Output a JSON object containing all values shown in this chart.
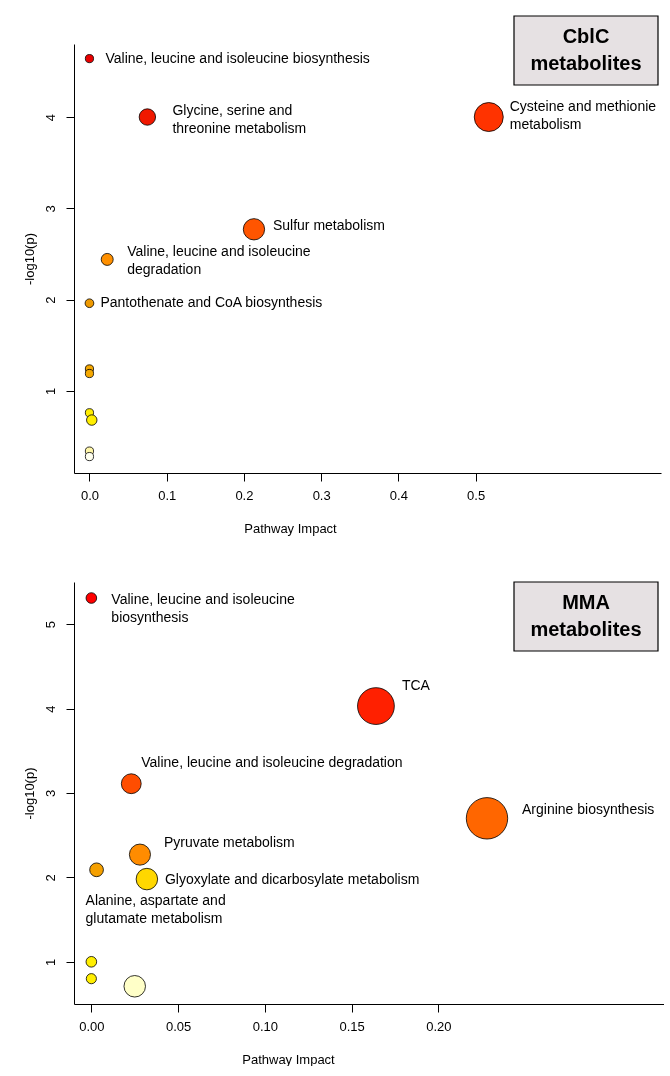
{
  "chart_data": [
    {
      "type": "bubble",
      "title": "CblC\nmetabolites",
      "xlabel": "Pathway Impact",
      "ylabel": "-log10(p)",
      "marker": "circle",
      "x": [
        0,
        0.075,
        0.517,
        0.213,
        0.023,
        0,
        0,
        0,
        0,
        0.003,
        0,
        0
      ],
      "values": [
        4.64,
        4.0,
        4.0,
        2.77,
        2.44,
        1.96,
        1.24,
        1.19,
        0.76,
        0.68,
        0.34,
        0.28
      ],
      "sizes": [
        0.08,
        0.32,
        1,
        0.54,
        0.17,
        0.09,
        0.08,
        0.08,
        0.08,
        0.13,
        0.08,
        0.08
      ],
      "colors": [
        "#e80000",
        "#f01800",
        "#ff3300",
        "#ff5500",
        "#ff9000",
        "#ee9900",
        "#f5a800",
        "#f5a800",
        "#ffee00",
        "#ffee00",
        "#fff6a8",
        "#fffff0"
      ],
      "xlim": [
        -0.02,
        0.74
      ],
      "xticks": [
        {
          "value": 0,
          "label": "0.0"
        },
        0.1,
        0.2,
        0.3,
        0.4,
        0.5
      ],
      "ylim": [
        0.1,
        4.8
      ],
      "yticks": [
        1,
        2,
        3,
        4
      ],
      "annotations": [
        {
          "text": "Valine, leucine and isoleucine biosynthesis",
          "x": 0,
          "y": 4.64
        },
        {
          "text": "Glycine, serine and\nthreonine metabolism",
          "x": 0.075,
          "y": 4.0
        },
        {
          "text": "Cysteine and methionie\nmetabolism",
          "x": 0.517,
          "y": 4.0
        },
        {
          "text": "Sulfur metabolism",
          "x": 0.213,
          "y": 2.77
        },
        {
          "text": "Valine, leucine and isoleucine\ndegradation",
          "x": 0.023,
          "y": 2.44
        },
        {
          "text": "Pantothenate and CoA biosynthesis",
          "x": 0,
          "y": 1.96
        }
      ]
    },
    {
      "type": "bubble",
      "title": "MMA\nmetabolites",
      "xlabel": "Pathway Impact",
      "ylabel": "-log10(p)",
      "marker": "circle",
      "x": [
        0,
        0.164,
        0.023,
        0.228,
        0.028,
        0.003,
        0.032,
        0,
        0,
        0.025
      ],
      "values": [
        5.31,
        4.03,
        3.11,
        2.7,
        2.27,
        2.09,
        1.98,
        1.0,
        0.8,
        0.71
      ],
      "sizes": [
        0.066,
        0.79,
        0.23,
        1,
        0.26,
        0.11,
        0.27,
        0.066,
        0.06,
        0.27
      ],
      "colors": [
        "#ff0000",
        "#ff2000",
        "#ff4d00",
        "#ff6600",
        "#ff8c00",
        "#f5a000",
        "#ffd700",
        "#ffee00",
        "#ffee00",
        "#ffffc8"
      ],
      "xlim": [
        -0.01,
        0.33
      ],
      "xticks": [
        {
          "value": 0,
          "label": "0.00"
        },
        0.05,
        {
          "value": 0.1,
          "label": "0.10"
        },
        0.15,
        {
          "value": 0.2,
          "label": "0.20"
        }
      ],
      "ylim": [
        0.5,
        5.5
      ],
      "yticks": [
        1,
        2,
        3,
        4,
        5
      ],
      "annotations": [
        {
          "text": "Valine, leucine and isoleucine\nbiosynthesis",
          "x": 0,
          "y": 5.31
        },
        {
          "text": "TCA",
          "x": 0.164,
          "y": 4.03
        },
        {
          "text": "Valine, leucine and isoleucine degradation",
          "x": 0.023,
          "y": 3.11
        },
        {
          "text": "Arginine biosynthesis",
          "x": 0.228,
          "y": 2.7
        },
        {
          "text": "Pyruvate metabolism",
          "x": 0.028,
          "y": 2.27
        },
        {
          "text": "Glyoxylate and dicarbosylate metabolism",
          "x": 0.032,
          "y": 1.98
        },
        {
          "text": "Alanine, aspartate and\nglutamate metabolism",
          "x": 0.003,
          "y": 2.09
        }
      ]
    }
  ]
}
